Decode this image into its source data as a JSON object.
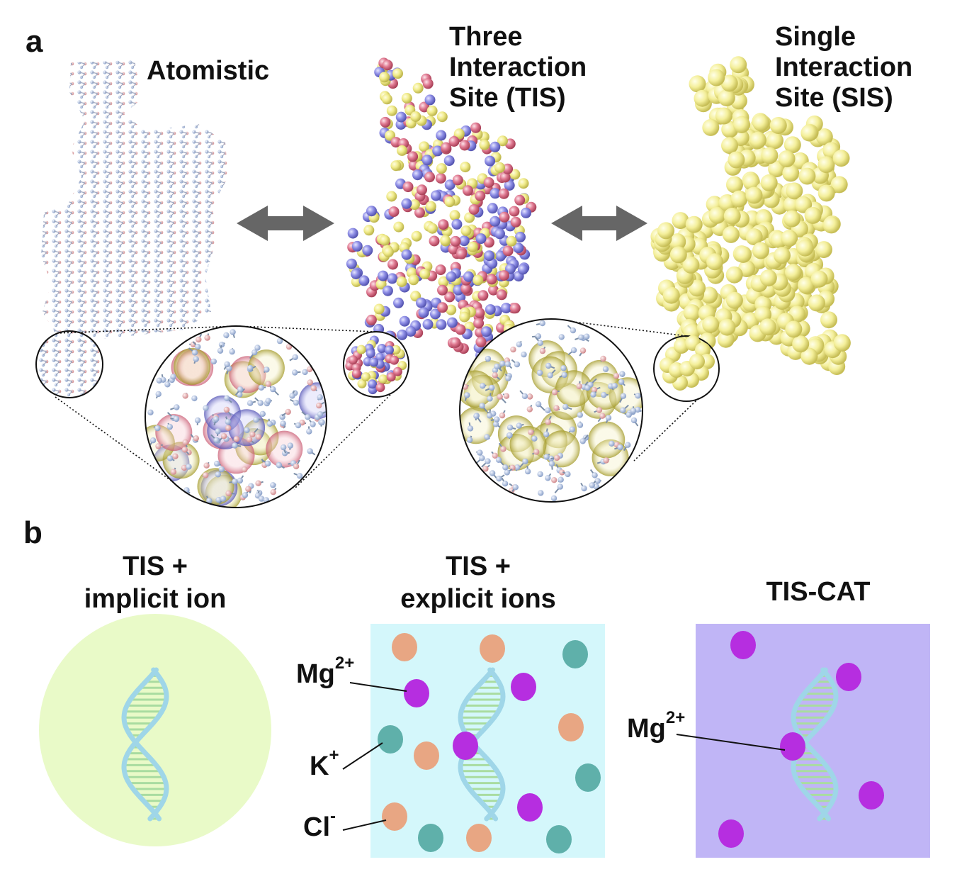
{
  "panel_a": {
    "letter": "a",
    "models": [
      {
        "lines": [
          "Atomistic"
        ]
      },
      {
        "lines": [
          "Three",
          "Interaction",
          "Site (TIS)"
        ]
      },
      {
        "lines": [
          "Single",
          "Interaction",
          "Site (SIS)"
        ]
      }
    ]
  },
  "panel_b": {
    "letter": "b",
    "columns": [
      {
        "title_lines": [
          "TIS +",
          "implicit ion"
        ]
      },
      {
        "title_lines": [
          "TIS +",
          "explicit ions"
        ],
        "ions": [
          {
            "base": "Mg",
            "charge": "2+"
          },
          {
            "base": "K",
            "charge": "+"
          },
          {
            "base": "Cl",
            "charge": "-"
          }
        ]
      },
      {
        "title_lines": [
          "TIS-CAT"
        ],
        "ions": [
          {
            "base": "Mg",
            "charge": "2+"
          }
        ]
      }
    ]
  },
  "colors": {
    "implicit_bg": "#e9fac8",
    "explicit_bg": "#d4f7fb",
    "cat_bg": "#c0b5f6",
    "mg": "#b62ee0",
    "k": "#5fb0aa",
    "cl": "#e8a683",
    "tis_pink": "#e07a92",
    "tis_yellow": "#f1ec8c",
    "tis_blue": "#8e8ee6",
    "sis_yellow": "#f4ef9a",
    "arrow": "#666666",
    "rna": "#9fd6e8"
  }
}
